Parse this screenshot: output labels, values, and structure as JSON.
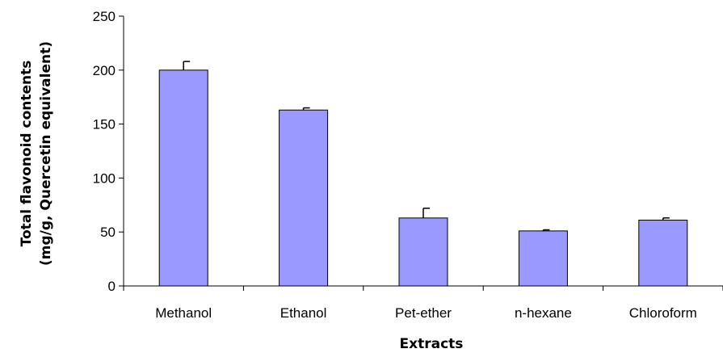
{
  "chart_data": {
    "type": "bar",
    "categories": [
      "Methanol",
      "Ethanol",
      "Pet-ether",
      "n-hexane",
      "Chloroform"
    ],
    "values": [
      200,
      163,
      63,
      51,
      61
    ],
    "error_plus": [
      8,
      2,
      9,
      1,
      2
    ],
    "title": "",
    "xlabel": "Extracts",
    "ylabel_line1": "Total flavonoid contents",
    "ylabel_line2": "(mg/g,  Quercetin equivalent)",
    "ylim": [
      0,
      250
    ],
    "yticks": [
      0,
      50,
      100,
      150,
      200,
      250
    ],
    "grid": false,
    "legend": "none",
    "bar_color": "#9999ff",
    "bar_edge_color": "#000000"
  }
}
